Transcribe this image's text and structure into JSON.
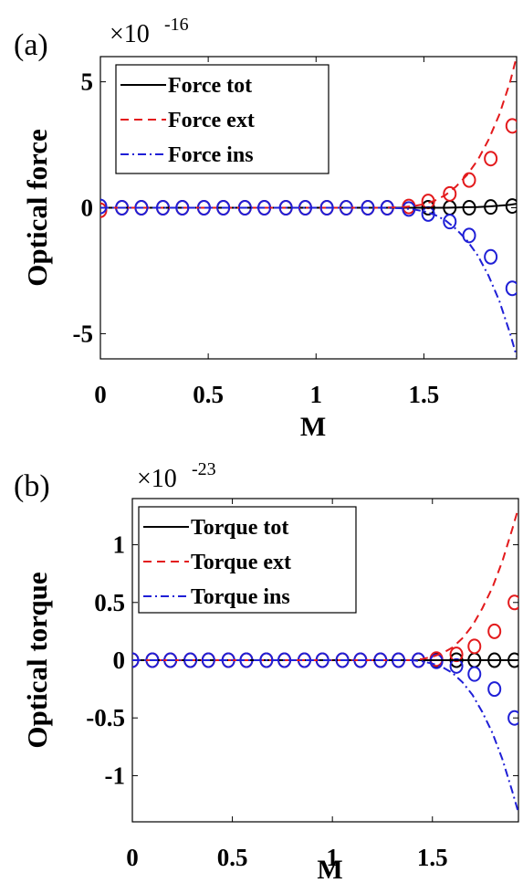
{
  "chart_data": [
    {
      "type": "line",
      "panel_label": "(a)",
      "xlabel": "M",
      "ylabel": "Optical force",
      "scale_base": "×10",
      "scale_exponent": "-16",
      "xlim": [
        0,
        1.93
      ],
      "ylim": [
        -6,
        6
      ],
      "xticks": [
        0,
        0.5,
        1,
        1.5
      ],
      "xtick_labels": [
        "0",
        "0.5",
        "1",
        "1.5"
      ],
      "yticks": [
        5,
        0,
        -5
      ],
      "ytick_labels": [
        "5",
        "0",
        "-5"
      ],
      "legend_position": "top-left",
      "series": [
        {
          "name": "Force tot",
          "color": "#000000",
          "dash": "solid",
          "x": [
            0,
            0.1,
            0.2,
            0.3,
            0.4,
            0.5,
            0.6,
            0.7,
            0.8,
            0.9,
            1.0,
            1.1,
            1.2,
            1.3,
            1.4,
            1.45,
            1.5,
            1.55,
            1.6,
            1.65,
            1.7,
            1.75,
            1.8,
            1.85,
            1.9,
            1.93
          ],
          "y": [
            0,
            0,
            0,
            0,
            0,
            0,
            0,
            0,
            0,
            0,
            0,
            0,
            0,
            0,
            0,
            0,
            0,
            0,
            0,
            0.01,
            0.02,
            0.03,
            0.05,
            0.08,
            0.12,
            0.16
          ]
        },
        {
          "name": "Force ext",
          "color": "#e31a1c",
          "dash": "dashed",
          "x": [
            0,
            0.1,
            0.2,
            0.3,
            0.4,
            0.5,
            0.6,
            0.7,
            0.8,
            0.9,
            1.0,
            1.1,
            1.2,
            1.3,
            1.4,
            1.45,
            1.5,
            1.55,
            1.6,
            1.65,
            1.7,
            1.75,
            1.8,
            1.85,
            1.9,
            1.93
          ],
          "y": [
            0,
            0,
            0,
            0,
            0,
            0,
            0,
            0,
            0,
            0,
            0,
            0,
            0,
            0,
            0.02,
            0.06,
            0.14,
            0.28,
            0.5,
            0.85,
            1.3,
            1.9,
            2.7,
            3.7,
            5.0,
            6.0
          ]
        },
        {
          "name": "Force ins",
          "color": "#1f1fd6",
          "dash": "dashdot",
          "x": [
            0,
            0.1,
            0.2,
            0.3,
            0.4,
            0.5,
            0.6,
            0.7,
            0.8,
            0.9,
            1.0,
            1.1,
            1.2,
            1.3,
            1.4,
            1.45,
            1.5,
            1.55,
            1.6,
            1.65,
            1.7,
            1.75,
            1.8,
            1.85,
            1.9,
            1.93
          ],
          "y": [
            0,
            0,
            0,
            0,
            0,
            0,
            0,
            0,
            0,
            0,
            0,
            0,
            0,
            0,
            -0.02,
            -0.06,
            -0.14,
            -0.28,
            -0.5,
            -0.85,
            -1.3,
            -1.9,
            -2.7,
            -3.7,
            -5.0,
            -5.9
          ]
        }
      ],
      "markers": [
        {
          "color": "#000000",
          "x": [
            1.52,
            1.62,
            1.71,
            1.81,
            1.91
          ],
          "y": [
            0,
            0,
            0,
            0.03,
            0.07
          ]
        },
        {
          "color": "#e31a1c",
          "x": [
            0,
            0.1,
            0.19,
            0.29,
            0.38,
            0.48,
            0.57,
            0.67,
            0.76,
            0.86,
            0.95,
            1.05,
            1.14,
            1.24,
            1.33,
            1.43,
            1.52,
            1.62,
            1.71,
            1.81,
            1.91
          ],
          "y": [
            -0.1,
            0,
            0,
            0,
            0,
            0,
            0,
            0,
            0,
            0,
            0,
            0,
            0,
            0,
            0,
            0.05,
            0.25,
            0.55,
            1.1,
            1.95,
            3.25
          ]
        },
        {
          "color": "#1f1fd6",
          "x": [
            0,
            0.1,
            0.19,
            0.29,
            0.38,
            0.48,
            0.57,
            0.67,
            0.76,
            0.86,
            0.95,
            1.05,
            1.14,
            1.24,
            1.33,
            1.43,
            1.52,
            1.62,
            1.71,
            1.81,
            1.91
          ],
          "y": [
            0.05,
            0,
            0,
            0,
            0,
            0,
            0,
            0,
            0,
            0,
            0,
            0,
            0,
            0,
            0,
            -0.05,
            -0.25,
            -0.55,
            -1.1,
            -1.95,
            -3.2
          ]
        }
      ]
    },
    {
      "type": "line",
      "panel_label": "(b)",
      "xlabel": "M",
      "ylabel": "Optical torque",
      "scale_base": "×10",
      "scale_exponent": "-23",
      "xlim": [
        0,
        1.93
      ],
      "ylim": [
        -1.4,
        1.4
      ],
      "xticks": [
        0,
        0.5,
        1,
        1.5
      ],
      "xtick_labels": [
        "0",
        "0.5",
        "1",
        "1.5"
      ],
      "yticks": [
        1,
        0.5,
        0,
        -0.5,
        -1
      ],
      "ytick_labels": [
        "1",
        "0.5",
        "0",
        "-0.5",
        "-1"
      ],
      "legend_position": "top-left",
      "series": [
        {
          "name": "Torque tot",
          "color": "#000000",
          "dash": "solid",
          "x": [
            0,
            0.2,
            0.4,
            0.6,
            0.8,
            1.0,
            1.2,
            1.4,
            1.5,
            1.6,
            1.7,
            1.8,
            1.9,
            1.93
          ],
          "y": [
            0,
            0,
            0,
            0,
            0,
            0,
            0,
            0,
            0,
            0,
            0,
            0,
            0,
            0
          ]
        },
        {
          "name": "Torque ext",
          "color": "#e31a1c",
          "dash": "dashed",
          "x": [
            0,
            0.2,
            0.4,
            0.6,
            0.8,
            1.0,
            1.2,
            1.4,
            1.45,
            1.5,
            1.55,
            1.6,
            1.65,
            1.7,
            1.75,
            1.8,
            1.85,
            1.9,
            1.93
          ],
          "y": [
            0,
            0,
            0,
            0,
            0,
            0,
            0,
            0,
            0.01,
            0.03,
            0.06,
            0.11,
            0.19,
            0.3,
            0.45,
            0.63,
            0.86,
            1.14,
            1.32
          ]
        },
        {
          "name": "Torque ins",
          "color": "#1f1fd6",
          "dash": "dashdot",
          "x": [
            0,
            0.2,
            0.4,
            0.6,
            0.8,
            1.0,
            1.2,
            1.4,
            1.45,
            1.5,
            1.55,
            1.6,
            1.65,
            1.7,
            1.75,
            1.8,
            1.85,
            1.9,
            1.93
          ],
          "y": [
            0,
            0,
            0,
            0,
            0,
            0,
            0,
            0,
            -0.01,
            -0.03,
            -0.06,
            -0.11,
            -0.19,
            -0.3,
            -0.45,
            -0.63,
            -0.86,
            -1.14,
            -1.32
          ]
        }
      ],
      "markers": [
        {
          "color": "#000000",
          "x": [
            1.52,
            1.62,
            1.71,
            1.81,
            1.91
          ],
          "y": [
            0,
            0,
            0,
            0,
            0
          ]
        },
        {
          "color": "#e31a1c",
          "x": [
            0,
            0.1,
            0.19,
            0.29,
            0.38,
            0.48,
            0.57,
            0.67,
            0.76,
            0.86,
            0.95,
            1.05,
            1.14,
            1.24,
            1.33,
            1.43,
            1.52,
            1.62,
            1.71,
            1.81,
            1.91
          ],
          "y": [
            0,
            0,
            0,
            0,
            0,
            0,
            0,
            0,
            0,
            0,
            0,
            0,
            0,
            0,
            0,
            0,
            0.01,
            0.05,
            0.12,
            0.25,
            0.5
          ]
        },
        {
          "color": "#1f1fd6",
          "x": [
            0,
            0.1,
            0.19,
            0.29,
            0.38,
            0.48,
            0.57,
            0.67,
            0.76,
            0.86,
            0.95,
            1.05,
            1.14,
            1.24,
            1.33,
            1.43,
            1.52,
            1.62,
            1.71,
            1.81,
            1.91
          ],
          "y": [
            0,
            0,
            0,
            0,
            0,
            0,
            0,
            0,
            0,
            0,
            0,
            0,
            0,
            0,
            0,
            0,
            -0.01,
            -0.05,
            -0.12,
            -0.25,
            -0.5
          ]
        }
      ]
    }
  ]
}
